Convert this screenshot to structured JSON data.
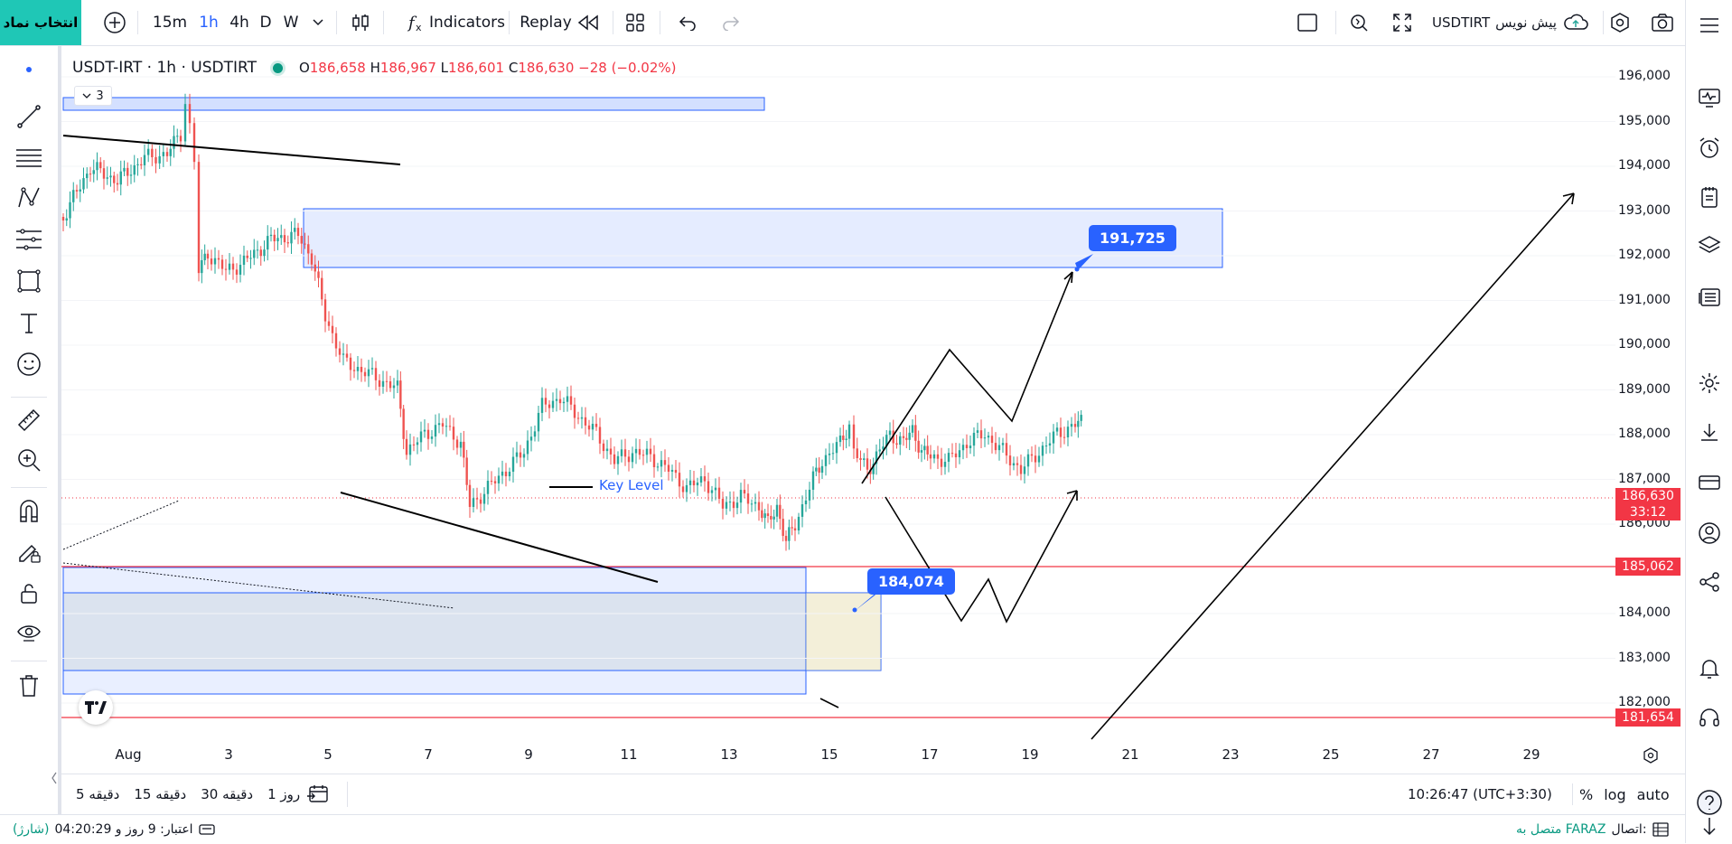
{
  "toolbar": {
    "symbol_button": "انتخاب نماد",
    "timeframes": [
      "15m",
      "1h",
      "4h",
      "D",
      "W"
    ],
    "active_timeframe": "1h",
    "indicators_label": "Indicators",
    "replay_label": "Replay",
    "symbol_name": "USDTIRT",
    "draft_label": "پیش نویس"
  },
  "legend": {
    "title": "USDT-IRT · 1h · USDTIRT",
    "open_label": "O",
    "open": "186,658",
    "high_label": "H",
    "high": "186,967",
    "low_label": "L",
    "low": "186,601",
    "close_label": "C",
    "close": "186,630",
    "change": "−28 (−0.02%)",
    "drawings_count": "3"
  },
  "price_axis": {
    "labels": [
      "196,000",
      "195,000",
      "194,000",
      "193,000",
      "192,000",
      "191,000",
      "190,000",
      "189,000",
      "188,000",
      "187,000",
      "186,000",
      "184,000",
      "183,000",
      "182,000"
    ],
    "current_price": "186,630",
    "countdown": "33:12",
    "level_1": "185,062",
    "level_2": "181,654"
  },
  "time_axis": {
    "labels": [
      "Aug",
      "3",
      "5",
      "7",
      "9",
      "11",
      "13",
      "15",
      "17",
      "19",
      "21",
      "23",
      "25",
      "27",
      "29"
    ]
  },
  "annotations": {
    "key_level": "Key Level",
    "target_callout": "191,725",
    "support_callout": "184,074"
  },
  "bottom_bar": {
    "ranges": [
      "5 دقیقه",
      "15 دقیقه",
      "30 دقیقه",
      "1 روز"
    ],
    "clock": "10:26:47 (UTC+3:30)",
    "percent": "%",
    "log": "log",
    "auto": "auto"
  },
  "status": {
    "credit": "اعتبار: 9 روز و 04:20:29",
    "charge": "(شارژ)",
    "connection_label": "اتصال:",
    "connection_value": "متصل به FARAZ"
  },
  "colors": {
    "accent": "#2962ff",
    "symbol_button": "#1fc7b6",
    "level_red": "#f23645",
    "candle_up": "#26a69a",
    "candle_down": "#ef5350"
  }
}
